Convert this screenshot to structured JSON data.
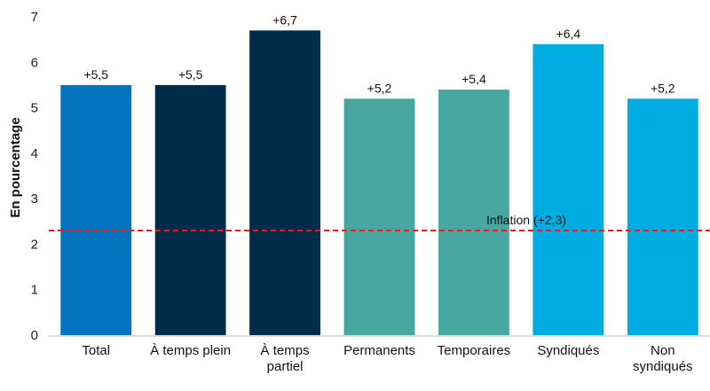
{
  "chart_data": {
    "type": "bar",
    "title": "",
    "xlabel": "",
    "ylabel": "En pourcentage",
    "ylim": [
      0,
      7
    ],
    "yticks": [
      "0",
      "1",
      "2",
      "3",
      "4",
      "5",
      "6",
      "7"
    ],
    "grid": false,
    "categories": [
      [
        "Total"
      ],
      [
        "À temps plein"
      ],
      [
        "À temps",
        "partiel"
      ],
      [
        "Permanents"
      ],
      [
        "Temporaires"
      ],
      [
        "Syndiqués"
      ],
      [
        "Non",
        "syndiqués"
      ]
    ],
    "values": [
      5.5,
      5.5,
      6.7,
      5.2,
      5.4,
      6.4,
      5.2
    ],
    "data_labels": [
      "+5,5",
      "+5,5",
      "+6,7",
      "+5,2",
      "+5,4",
      "+6,4",
      "+5,2"
    ],
    "colors": [
      "#0273bf",
      "#002b49",
      "#002b49",
      "#49a7a2",
      "#49a7a2",
      "#00ade3",
      "#00ade3"
    ],
    "reference_line": {
      "value": 2.3,
      "label": "Inflation (+2,3)",
      "color": "#e02020",
      "style": "dashed"
    }
  }
}
